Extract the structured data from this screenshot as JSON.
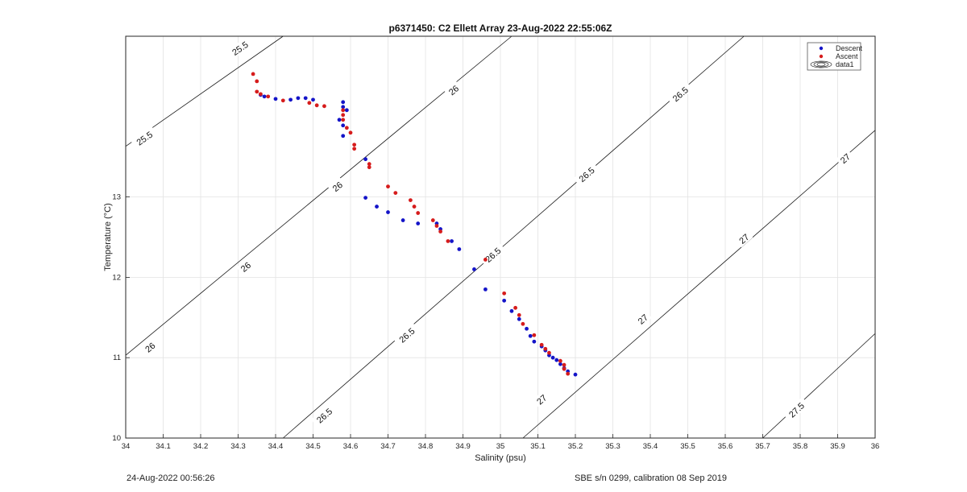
{
  "chart_data": {
    "type": "scatter",
    "title": "p6371450: C2 Ellett Array 23-Aug-2022 22:55:06Z",
    "xlabel": "Salinity (psu)",
    "ylabel": "Temperature (°C)",
    "xlim": [
      34,
      36
    ],
    "ylim": [
      10,
      15
    ],
    "xticks": [
      "34",
      "34.1",
      "34.2",
      "34.3",
      "34.4",
      "34.5",
      "34.6",
      "34.7",
      "34.8",
      "34.9",
      "35",
      "35.1",
      "35.2",
      "35.3",
      "35.4",
      "35.5",
      "35.6",
      "35.7",
      "35.8",
      "35.9",
      "36"
    ],
    "yticks": [
      "10",
      "11",
      "12",
      "13"
    ],
    "grid": true,
    "legend_position": "top-right",
    "legend": [
      "Descent",
      "Ascent",
      "data1"
    ],
    "series": [
      {
        "name": "Descent",
        "color": "#1414c8",
        "points": [
          [
            34.36,
            14.27
          ],
          [
            34.37,
            14.25
          ],
          [
            34.4,
            14.22
          ],
          [
            34.44,
            14.21
          ],
          [
            34.46,
            14.23
          ],
          [
            34.48,
            14.23
          ],
          [
            34.5,
            14.21
          ],
          [
            34.57,
            13.96
          ],
          [
            34.58,
            14.18
          ],
          [
            34.58,
            14.12
          ],
          [
            34.58,
            13.89
          ],
          [
            34.58,
            13.76
          ],
          [
            34.59,
            14.08
          ],
          [
            34.64,
            13.47
          ],
          [
            34.64,
            12.99
          ],
          [
            34.67,
            12.88
          ],
          [
            34.7,
            12.81
          ],
          [
            34.74,
            12.71
          ],
          [
            34.78,
            12.67
          ],
          [
            34.83,
            12.67
          ],
          [
            34.84,
            12.6
          ],
          [
            34.87,
            12.45
          ],
          [
            34.89,
            12.35
          ],
          [
            34.93,
            12.1
          ],
          [
            34.96,
            11.85
          ],
          [
            35.01,
            11.71
          ],
          [
            35.03,
            11.58
          ],
          [
            35.05,
            11.48
          ],
          [
            35.07,
            11.36
          ],
          [
            35.08,
            11.27
          ],
          [
            35.09,
            11.2
          ],
          [
            35.11,
            11.14
          ],
          [
            35.12,
            11.09
          ],
          [
            35.13,
            11.03
          ],
          [
            35.14,
            11.0
          ],
          [
            35.15,
            10.97
          ],
          [
            35.16,
            10.92
          ],
          [
            35.17,
            10.87
          ],
          [
            35.18,
            10.83
          ],
          [
            35.2,
            10.79
          ]
        ]
      },
      {
        "name": "Ascent",
        "color": "#d61c1c",
        "points": [
          [
            34.34,
            14.53
          ],
          [
            34.35,
            14.44
          ],
          [
            34.35,
            14.31
          ],
          [
            34.36,
            14.28
          ],
          [
            34.38,
            14.25
          ],
          [
            34.42,
            14.2
          ],
          [
            34.49,
            14.17
          ],
          [
            34.51,
            14.14
          ],
          [
            34.53,
            14.13
          ],
          [
            34.58,
            14.08
          ],
          [
            34.58,
            14.02
          ],
          [
            34.58,
            13.96
          ],
          [
            34.59,
            13.86
          ],
          [
            34.6,
            13.8
          ],
          [
            34.61,
            13.65
          ],
          [
            34.61,
            13.6
          ],
          [
            34.65,
            13.41
          ],
          [
            34.65,
            13.37
          ],
          [
            34.7,
            13.13
          ],
          [
            34.72,
            13.05
          ],
          [
            34.76,
            12.96
          ],
          [
            34.77,
            12.88
          ],
          [
            34.78,
            12.8
          ],
          [
            34.82,
            12.71
          ],
          [
            34.83,
            12.64
          ],
          [
            34.84,
            12.57
          ],
          [
            34.86,
            12.45
          ],
          [
            34.96,
            12.22
          ],
          [
            35.01,
            11.8
          ],
          [
            35.04,
            11.62
          ],
          [
            35.05,
            11.53
          ],
          [
            35.06,
            11.42
          ],
          [
            35.09,
            11.28
          ],
          [
            35.11,
            11.16
          ],
          [
            35.12,
            11.11
          ],
          [
            35.13,
            11.06
          ],
          [
            35.16,
            10.96
          ],
          [
            35.17,
            10.91
          ],
          [
            35.17,
            10.86
          ],
          [
            35.18,
            10.8
          ]
        ]
      }
    ],
    "contours": [
      {
        "label": "25.5",
        "x1": 34.0,
        "y1": 13.63,
        "x2": 34.42,
        "y2": 15.0
      },
      {
        "label": "26",
        "x1": 34.0,
        "y1": 11.03,
        "x2": 35.03,
        "y2": 15.0
      },
      {
        "label": "26.5",
        "x1": 34.42,
        "y1": 10.0,
        "x2": 35.65,
        "y2": 15.0
      },
      {
        "label": "27",
        "x1": 35.06,
        "y1": 10.0,
        "x2": 36.0,
        "y2": 13.83
      },
      {
        "label": "27.5",
        "x1": 35.7,
        "y1": 10.0,
        "x2": 36.0,
        "y2": 11.3
      }
    ],
    "contour_label_positions": [
      {
        "label": "25.5",
        "x": 34.305,
        "y": 14.85
      },
      {
        "label": "25.5",
        "x": 34.05,
        "y": 13.73
      },
      {
        "label": "26",
        "x": 34.875,
        "y": 14.33
      },
      {
        "label": "26",
        "x": 34.565,
        "y": 13.13
      },
      {
        "label": "26",
        "x": 34.32,
        "y": 12.13
      },
      {
        "label": "26",
        "x": 34.065,
        "y": 11.13
      },
      {
        "label": "26.5",
        "x": 35.48,
        "y": 14.28
      },
      {
        "label": "26.5",
        "x": 35.23,
        "y": 13.28
      },
      {
        "label": "26.5",
        "x": 34.98,
        "y": 12.28
      },
      {
        "label": "26.5",
        "x": 34.75,
        "y": 11.28
      },
      {
        "label": "26.5",
        "x": 34.53,
        "y": 10.28
      },
      {
        "label": "27",
        "x": 35.92,
        "y": 13.48
      },
      {
        "label": "27",
        "x": 35.65,
        "y": 12.48
      },
      {
        "label": "27",
        "x": 35.38,
        "y": 11.48
      },
      {
        "label": "27",
        "x": 35.11,
        "y": 10.48
      },
      {
        "label": "27.5",
        "x": 35.79,
        "y": 10.35
      }
    ]
  },
  "footer": {
    "left_text": "24-Aug-2022 00:56:26",
    "right_text": "SBE s/n 0299, calibration 08 Sep 2019"
  }
}
